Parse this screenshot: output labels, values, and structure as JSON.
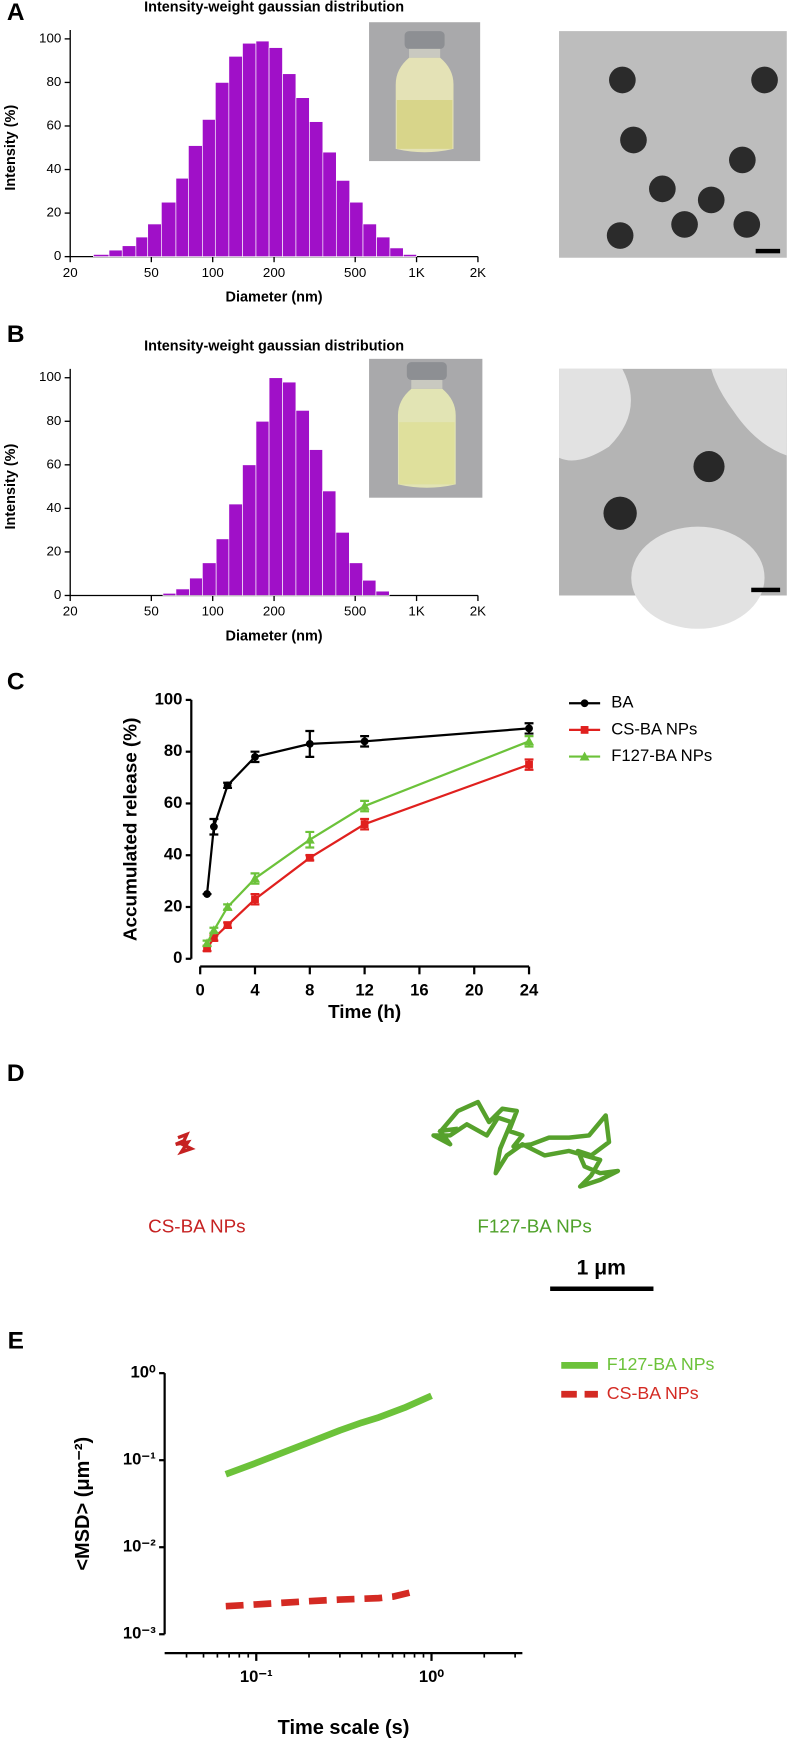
{
  "panel_labels": [
    "A",
    "B",
    "C",
    "D",
    "E"
  ],
  "chart_data": [
    {
      "type": "histogram",
      "title": "Intensity-weight gaussian distribution",
      "x_label": "Diameter (nm)",
      "y_label": "Intensity (%)",
      "color": "#a010c8",
      "xlog": true,
      "bins": [
        26,
        31,
        36,
        42,
        48,
        56,
        66,
        76,
        89,
        103,
        120,
        140,
        163,
        189,
        220,
        256,
        298,
        347,
        404,
        470,
        546,
        636,
        740,
        861,
        1000
      ],
      "values": [
        1,
        3,
        5,
        9,
        15,
        25,
        36,
        51,
        63,
        80,
        92,
        98,
        99,
        96,
        84,
        73,
        62,
        48,
        35,
        25,
        15,
        9,
        4,
        1
      ],
      "xlim": [
        20,
        2000
      ],
      "xticks": [
        20,
        50,
        100,
        200,
        500,
        {
          "value": 1000,
          "label": "1K"
        },
        {
          "value": 2000,
          "label": "2K"
        }
      ],
      "ylim": [
        0,
        100
      ],
      "yticks": [
        0,
        20,
        40,
        60,
        80,
        100
      ]
    },
    {
      "type": "histogram",
      "title": "Intensity-weight gaussian distribution",
      "x_label": "Diameter (nm)",
      "y_label": "Intensity (%)",
      "color": "#a010c8",
      "xlog": true,
      "bins": [
        57,
        66,
        77,
        89,
        104,
        120,
        140,
        163,
        189,
        220,
        256,
        298,
        346,
        402,
        468,
        544,
        632,
        735
      ],
      "values": [
        1,
        3,
        8,
        15,
        26,
        42,
        60,
        80,
        100,
        98,
        85,
        67,
        48,
        29,
        15,
        7,
        2
      ],
      "xlim": [
        20,
        2000
      ],
      "xticks": [
        20,
        50,
        100,
        200,
        500,
        {
          "value": 1000,
          "label": "1K"
        },
        {
          "value": 2000,
          "label": "2K"
        }
      ],
      "ylim": [
        0,
        100
      ],
      "yticks": [
        0,
        20,
        40,
        60,
        80,
        100
      ]
    },
    {
      "type": "line",
      "x_label": "Time (h)",
      "y_label": "Accumulated release (%)",
      "legend": "right",
      "x": [
        0.5,
        1,
        2,
        4,
        8,
        12,
        24
      ],
      "series": [
        {
          "name": "BA",
          "color": "#000000",
          "marker": "circle",
          "values": [
            25,
            51,
            67,
            78,
            83,
            84,
            89
          ],
          "errors": [
            0,
            3,
            1,
            2,
            5,
            2,
            2
          ]
        },
        {
          "name": "CS-BA NPs",
          "color": "#e0201e",
          "marker": "square",
          "values": [
            4,
            8,
            13,
            23,
            39,
            52,
            75
          ],
          "errors": [
            1,
            1,
            1,
            2,
            1,
            2,
            2
          ]
        },
        {
          "name": "F127-BA NPs",
          "color": "#6cc23a",
          "marker": "triangle",
          "values": [
            6,
            11,
            20,
            31,
            46,
            59,
            84
          ],
          "errors": [
            1,
            1,
            1,
            2,
            3,
            2,
            2
          ]
        }
      ],
      "xlim": [
        0,
        24
      ],
      "xticks": [
        0,
        4,
        8,
        12,
        16,
        20,
        24
      ],
      "ylim": [
        0,
        100
      ],
      "yticks": [
        0,
        20,
        40,
        60,
        80,
        100
      ]
    },
    {
      "type": "loglog",
      "x_label": "Time scale (s)",
      "y_label": "<MSD> (μm⁻²)",
      "legend": "right",
      "xlog": true,
      "ylog": true,
      "series": [
        {
          "name": "F127-BA NPs",
          "color": "#6cc23a",
          "dashed": false,
          "x": [
            0.067,
            0.1,
            0.2,
            0.3,
            0.4,
            0.5,
            0.7,
            1.0
          ],
          "values": [
            0.069,
            0.093,
            0.16,
            0.22,
            0.27,
            0.31,
            0.4,
            0.55
          ]
        },
        {
          "name": "CS-BA NPs",
          "color": "#d42a23",
          "dashed": true,
          "x": [
            0.067,
            0.1,
            0.2,
            0.3,
            0.5,
            0.6,
            0.8
          ],
          "values": [
            0.0021,
            0.0022,
            0.0024,
            0.0025,
            0.0026,
            0.0027,
            0.0031
          ]
        }
      ],
      "xlim": [
        0.03,
        3.3
      ],
      "xticks": [
        {
          "value": 0.1,
          "label": "10⁻¹"
        },
        {
          "value": 1,
          "label": "10⁰"
        }
      ],
      "xminorticks": [
        0.04,
        0.05,
        0.06,
        0.07,
        0.08,
        0.09,
        0.2,
        0.3,
        0.4,
        0.5,
        0.6,
        0.7,
        0.8,
        0.9,
        2,
        3
      ],
      "ylim": [
        0.001,
        1
      ],
      "yticks": [
        {
          "value": 0.001,
          "label": "10⁻³"
        },
        {
          "value": 0.01,
          "label": "10⁻²"
        },
        {
          "value": 0.1,
          "label": "10⁻¹"
        },
        {
          "value": 1,
          "label": "10⁰"
        }
      ]
    }
  ],
  "panel_d": {
    "labels": [
      "CS-BA NPs",
      "F127-BA NPs"
    ],
    "scale_bar": "1 μm"
  }
}
